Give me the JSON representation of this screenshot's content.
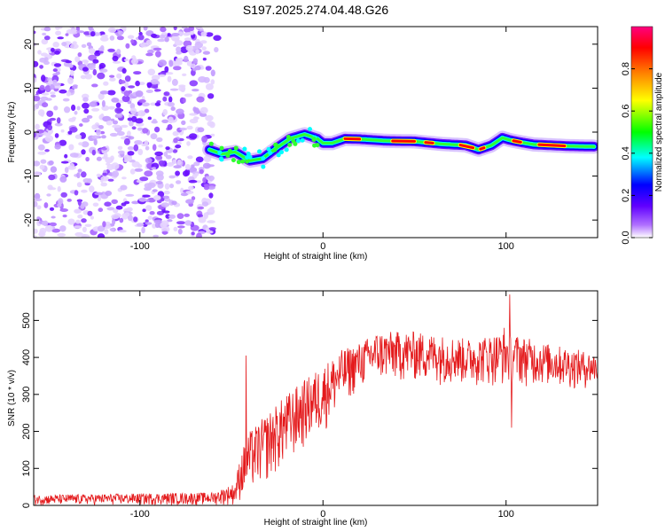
{
  "title": "S197.2025.274.04.48.G26",
  "chart_data": [
    {
      "type": "heatmap",
      "xlabel": "Height of straight line (km)",
      "ylabel": "Frequency (Hz)",
      "xlim": [
        -158,
        150
      ],
      "ylim": [
        -24,
        24
      ],
      "x_ticks": [
        -100,
        0,
        100
      ],
      "x_tick_labels": [
        "-100",
        "0",
        "100"
      ],
      "y_ticks": [
        -20,
        -10,
        0,
        10,
        20
      ],
      "y_tick_labels": [
        "-20",
        "-10",
        "0",
        "10",
        "20"
      ],
      "noise_region_x": [
        -158,
        -60
      ],
      "signal_track": {
        "x": [
          -62,
          -55,
          -48,
          -40,
          -33,
          -25,
          -18,
          -10,
          -3,
          0,
          5,
          12,
          20,
          35,
          50,
          65,
          78,
          85,
          92,
          98,
          102,
          108,
          115,
          125,
          135,
          148
        ],
        "freq": [
          -4,
          -5,
          -4.5,
          -6.5,
          -6,
          -3.5,
          -1.5,
          -0.5,
          -1.5,
          -2.5,
          -2.5,
          -1.5,
          -1.6,
          -2.0,
          -2.1,
          -2.7,
          -3.0,
          -4.0,
          -3.0,
          -1.3,
          -1.8,
          -2.3,
          -2.8,
          -3.0,
          -3.2,
          -3.3
        ]
      },
      "colorbar": {
        "label": "Normalized spectral amplitude",
        "ticks": [
          0.0,
          0.2,
          0.4,
          0.6,
          0.8
        ],
        "tick_labels": [
          "0.0",
          "0.2",
          "0.4",
          "0.6",
          "0.8"
        ],
        "range": [
          0.0,
          1.0
        ],
        "colors": [
          "#ffffff",
          "#b070ff",
          "#6000ff",
          "#0000ff",
          "#00ffff",
          "#00ff00",
          "#ffff00",
          "#ff8000",
          "#ff0000",
          "#ff0080"
        ]
      }
    },
    {
      "type": "line",
      "xlabel": "Height of straight line (km)",
      "ylabel": "SNR (10 * v/v)",
      "xlim": [
        -158,
        150
      ],
      "ylim": [
        0,
        580
      ],
      "x_ticks": [
        -100,
        0,
        100
      ],
      "x_tick_labels": [
        "-100",
        "0",
        "100"
      ],
      "y_ticks": [
        0,
        100,
        200,
        300,
        400,
        500
      ],
      "y_tick_labels": [
        "0",
        "100",
        "200",
        "300",
        "400",
        "500"
      ],
      "color": "#e41a1c",
      "envelope": {
        "x": [
          -158,
          -60,
          -48,
          -45,
          -40,
          -30,
          -20,
          -10,
          0,
          10,
          20,
          30,
          50,
          80,
          100,
          120,
          140,
          150
        ],
        "low": [
          0,
          0,
          0,
          10,
          30,
          60,
          100,
          150,
          190,
          260,
          310,
          330,
          330,
          320,
          320,
          320,
          310,
          320
        ],
        "high": [
          28,
          35,
          60,
          140,
          200,
          250,
          300,
          340,
          380,
          420,
          440,
          470,
          470,
          450,
          470,
          440,
          420,
          410
        ]
      },
      "spikes": [
        {
          "x": -42,
          "y": 405
        },
        {
          "x": 102,
          "y": 570
        },
        {
          "x": 99,
          "y": 480
        },
        {
          "x": 103,
          "y": 210
        }
      ]
    }
  ]
}
